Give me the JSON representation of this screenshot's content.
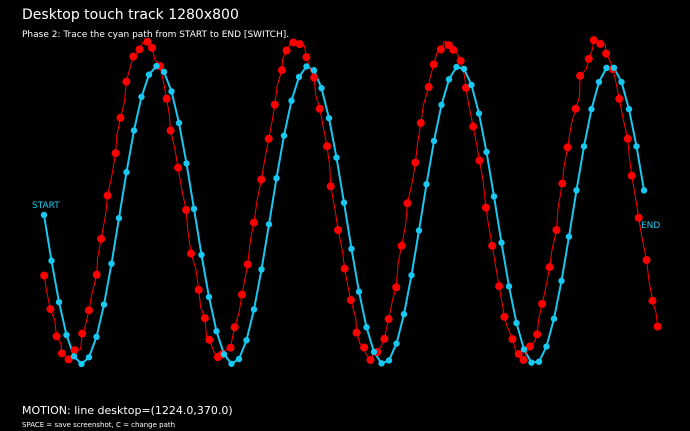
{
  "header": {
    "title": "Desktop touch track  1280x800",
    "instruction": "Phase 2: Trace the cyan path from START to END [SWITCH]."
  },
  "labels": {
    "start": "START",
    "end": "END"
  },
  "footer": {
    "status": "MOTION: line desktop=(1224.0,370.0)",
    "help": "SPACE = save screenshot, C = change path"
  }
}
